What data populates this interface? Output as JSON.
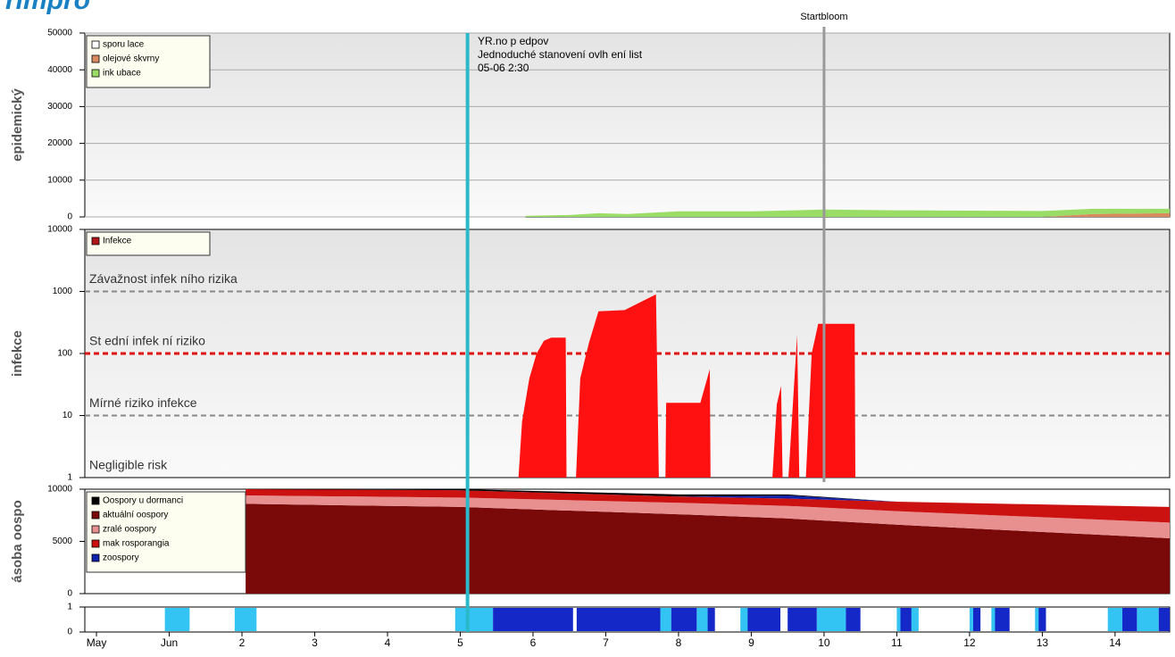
{
  "header": {
    "title": "rimpro"
  },
  "x_axis": {
    "xlim": [
      -0.16,
      14.75
    ],
    "xticks": [
      {
        "value": 0,
        "label": "May"
      },
      {
        "value": 1,
        "label": "Jun"
      },
      2,
      3,
      4,
      5,
      6,
      7,
      8,
      9,
      10,
      11,
      12,
      13,
      14
    ]
  },
  "markers": [
    {
      "x": 5.1,
      "color": "#2bb8c8"
    },
    {
      "x": 10,
      "label": "Startbloom",
      "color": "#999999"
    }
  ],
  "chart_data": [
    {
      "type": "area",
      "stacked": true,
      "ylabel": "epidemický",
      "ylim": [
        0,
        50000
      ],
      "yticks": [
        0,
        10000,
        20000,
        30000,
        40000,
        50000
      ],
      "grid": true,
      "legend": "top-left",
      "annotation": [
        "YR.no p edpov",
        "Jednoduché stanovení ovlh ení list",
        "05-06 2:30"
      ],
      "x": [
        5.9,
        6.5,
        6.9,
        7.3,
        8,
        9,
        10,
        11,
        12,
        13,
        13.7,
        14.75
      ],
      "series": [
        {
          "name": "sporu lace",
          "color": "#ffffff",
          "values": [
            0,
            0,
            0,
            0,
            0,
            0,
            0,
            0,
            0,
            0,
            0,
            0
          ]
        },
        {
          "name": "olejové skvrny",
          "color": "#d98b5f",
          "values": [
            0,
            0,
            0,
            0,
            0,
            0,
            0,
            0,
            0,
            0,
            800,
            1000
          ]
        },
        {
          "name": "ink ubace",
          "color": "#99dd66",
          "values": [
            300,
            500,
            1000,
            800,
            1500,
            1500,
            2000,
            1800,
            1700,
            1600,
            1400,
            1200
          ]
        }
      ]
    },
    {
      "type": "area",
      "stacked": false,
      "log": true,
      "ylabel": "infekce",
      "ylim": [
        1,
        10000
      ],
      "yticks": [
        1,
        10,
        100,
        1000,
        10000
      ],
      "grid": false,
      "legend": "top-left",
      "thresholds": [
        {
          "value": 1000,
          "label": "Závažnost infek ního rizika",
          "color": "#888888"
        },
        {
          "value": 100,
          "label": "St ední infek ní riziko",
          "color": "#dd1111"
        },
        {
          "value": 10,
          "label": "Mírné riziko infekce",
          "color": "#888888"
        },
        {
          "value": 1,
          "label": "Negligible risk"
        }
      ],
      "x": [
        5.8,
        5.85,
        5.95,
        6.05,
        6.15,
        6.25,
        6.45,
        6.46,
        6.5,
        6.59,
        6.65,
        6.77,
        6.9,
        7.26,
        7.69,
        7.73,
        7.78,
        7.82,
        7.83,
        8.3,
        8.43,
        8.44,
        8.8,
        9.29,
        9.35,
        9.41,
        9.43,
        9.47,
        9.51,
        9.63,
        9.66,
        9.7,
        9.75,
        9.83,
        9.92,
        10.42,
        10.43
      ],
      "series": [
        {
          "name": "Infekce",
          "color": "#ff1111",
          "legend_color": "#b01818",
          "values": [
            1,
            8,
            40,
            100,
            160,
            180,
            180,
            1,
            null,
            1,
            40,
            150,
            480,
            500,
            900,
            1,
            null,
            1,
            16,
            16,
            56,
            1,
            null,
            1,
            15,
            30,
            1,
            null,
            1,
            200,
            1,
            null,
            1,
            100,
            300,
            300,
            1
          ]
        }
      ]
    },
    {
      "type": "area",
      "stacked": true,
      "ylabel": "ásoba oospo",
      "ylim": [
        0,
        10000
      ],
      "yticks": [
        0,
        5000,
        10000
      ],
      "grid": false,
      "legend": "top-left",
      "x": [
        2.05,
        5,
        8,
        9.5,
        11,
        14.75
      ],
      "series": [
        {
          "name": "Oospory u dormanci",
          "color": "#000000",
          "values": [
            0,
            100,
            200,
            100,
            0,
            0
          ]
        },
        {
          "name": "aktuální oospory",
          "color": "#7a0a0a",
          "values": [
            8600,
            8300,
            7600,
            7200,
            6600,
            5300
          ]
        },
        {
          "name": "zralé oospory",
          "color": "#e89090",
          "values": [
            800,
            900,
            1100,
            1200,
            1300,
            1500
          ]
        },
        {
          "name": "mak rosporangia",
          "color": "#cc1111",
          "values": [
            600,
            700,
            600,
            700,
            900,
            1500
          ]
        },
        {
          "name": "zoospory",
          "color": "#1122aa",
          "values": [
            0,
            0,
            0,
            300,
            0,
            0
          ]
        }
      ]
    },
    {
      "type": "timeline",
      "ylim": [
        0,
        1
      ],
      "yticks": [
        0,
        1
      ],
      "series": [
        {
          "color": "#33c4f4",
          "intervals": [
            [
              0.94,
              1.28
            ],
            [
              1.9,
              2.2
            ],
            [
              4.93,
              5.45
            ],
            [
              7.75,
              7.9
            ],
            [
              8.25,
              8.4
            ],
            [
              8.85,
              9.1
            ],
            [
              9.9,
              10.3
            ],
            [
              11.0,
              11.3
            ],
            [
              12.0,
              12.1
            ],
            [
              12.3,
              12.4
            ],
            [
              12.9,
              13.0
            ],
            [
              13.9,
              14.1
            ],
            [
              14.3,
              14.6
            ]
          ]
        },
        {
          "color": "#1428c8",
          "intervals": [
            [
              5.45,
              6.55
            ],
            [
              6.6,
              7.75
            ],
            [
              7.9,
              8.25
            ],
            [
              8.4,
              8.5
            ],
            [
              8.95,
              9.4
            ],
            [
              9.5,
              9.9
            ],
            [
              10.3,
              10.5
            ],
            [
              11.05,
              11.2
            ],
            [
              12.05,
              12.15
            ],
            [
              12.35,
              12.55
            ],
            [
              12.95,
              13.05
            ],
            [
              14.1,
              14.3
            ],
            [
              14.6,
              14.75
            ]
          ]
        }
      ]
    }
  ]
}
